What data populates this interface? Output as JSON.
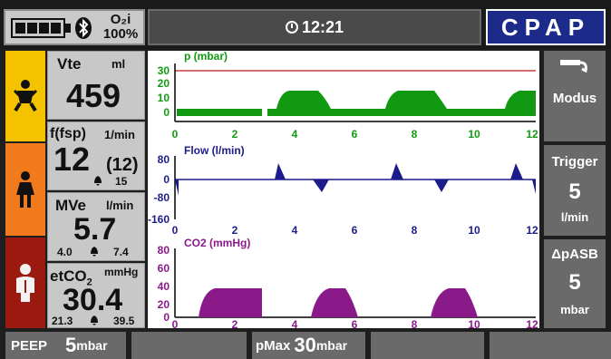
{
  "status": {
    "o2_label": "O₂i",
    "o2_value": "100%",
    "battery_icon": "battery-full-icon",
    "bluetooth_icon": "bluetooth-icon"
  },
  "clock": {
    "time": "12:21"
  },
  "mode": {
    "label": "CPAP"
  },
  "params": {
    "vte": {
      "name": "Vte",
      "unit": "ml",
      "value": "459"
    },
    "f": {
      "name": "f(fsp)",
      "unit": "1/min",
      "value": "12",
      "sub": "(12)",
      "alarm": "15"
    },
    "mve": {
      "name": "MVe",
      "unit": "l/min",
      "value": "5.7",
      "low": "4.0",
      "high": "7.4"
    },
    "etco2": {
      "name": "etCO",
      "sub": "2",
      "unit": "mmHg",
      "value": "30.4",
      "low": "21.3",
      "high": "39.5"
    }
  },
  "graphs": {
    "pressure": {
      "title": "p (mbar)",
      "yticks": [
        "30",
        "20",
        "10",
        "0"
      ],
      "color": "#119a11"
    },
    "flow": {
      "title": "Flow (l/min)",
      "yticks": [
        "80",
        "0",
        "-80",
        "-160"
      ],
      "color": "#1c1c8a"
    },
    "co2": {
      "title": "CO2 (mmHg)",
      "yticks": [
        "80",
        "60",
        "40",
        "20",
        "0"
      ],
      "color": "#8a1a8a"
    },
    "xticks": [
      "0",
      "2",
      "4",
      "6",
      "8",
      "10",
      "12"
    ]
  },
  "right": {
    "modus": {
      "label": "Modus"
    },
    "trigger": {
      "label": "Trigger",
      "value": "5",
      "unit": "l/min"
    },
    "pasb": {
      "label": "ΔpASB",
      "value": "5",
      "unit": "mbar"
    }
  },
  "bottom": {
    "peep": {
      "label": "PEEP",
      "value": "5",
      "unit": "mbar"
    },
    "pmax": {
      "label": "pMax",
      "value": "30",
      "unit": "mbar"
    }
  },
  "colors": {
    "child": "#f5c200",
    "teen": "#f07a1c",
    "adult": "#9a1a10",
    "mode_bg": "#1c2a8a"
  }
}
